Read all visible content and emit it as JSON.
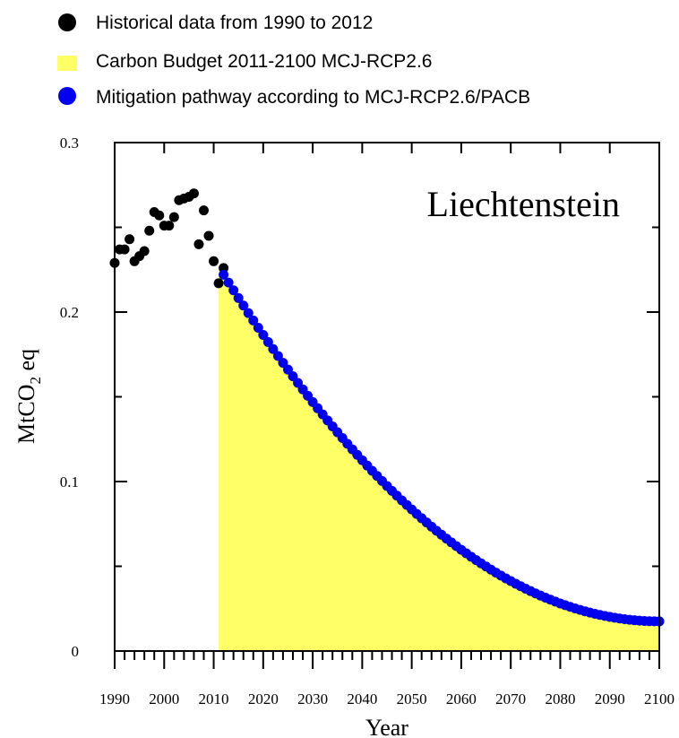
{
  "chart_data": {
    "type": "scatter",
    "annotation": "Liechtenstein",
    "xlabel": "Year",
    "ylabel": {
      "main": "MtCO",
      "sub": "2",
      "tail": " eq"
    },
    "xlim": [
      1990,
      2100
    ],
    "ylim": [
      0,
      0.3
    ],
    "x_ticks": [
      1990,
      2000,
      2010,
      2020,
      2030,
      2040,
      2050,
      2060,
      2070,
      2080,
      2090,
      2100
    ],
    "y_ticks": [
      {
        "value": 0,
        "label": "0"
      },
      {
        "value": 0.1,
        "label": "0.1"
      },
      {
        "value": 0.2,
        "label": "0.2"
      },
      {
        "value": 0.3,
        "label": "0.3"
      }
    ],
    "legend": [
      {
        "label": "Historical data from 1990 to 2012",
        "marker": "circle",
        "color": "#000000"
      },
      {
        "label": "Carbon Budget 2011-2100 MCJ-RCP2.6",
        "marker": "square",
        "color": "#ffff66"
      },
      {
        "label": "Mitigation pathway according to MCJ-RCP2.6/PACB",
        "marker": "circle",
        "color": "#0000ee"
      }
    ],
    "series": [
      {
        "name": "Historical data from 1990 to 2012",
        "kind": "points",
        "color": "#000000",
        "x": [
          1990,
          1991,
          1992,
          1993,
          1994,
          1995,
          1996,
          1997,
          1998,
          1999,
          2000,
          2001,
          2002,
          2003,
          2004,
          2005,
          2006,
          2007,
          2008,
          2009,
          2010,
          2011,
          2012
        ],
        "y": [
          0.229,
          0.237,
          0.237,
          0.243,
          0.23,
          0.233,
          0.236,
          0.248,
          0.259,
          0.257,
          0.251,
          0.251,
          0.256,
          0.266,
          0.267,
          0.268,
          0.27,
          0.24,
          0.26,
          0.245,
          0.23,
          0.217,
          0.226
        ]
      },
      {
        "name": "Mitigation pathway according to MCJ-RCP2.6/PACB",
        "kind": "points",
        "color": "#0000ee",
        "x_start": 2012,
        "x_end": 2100,
        "x_step": 1,
        "curve": {
          "y_start": 0.222,
          "y_end": 0.0175,
          "shape_exponent": 2
        }
      },
      {
        "name": "Carbon Budget 2011-2100 MCJ-RCP2.6",
        "kind": "area",
        "color": "#ffff66",
        "x_from": 2011,
        "x_to": 2100,
        "y_at_start": 0.222
      }
    ]
  }
}
